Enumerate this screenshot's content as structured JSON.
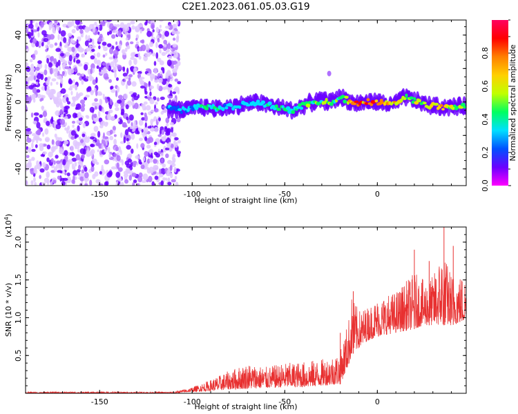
{
  "figure_title": "C2E1.2023.061.05.03.G19",
  "colors": {
    "line": "#e83030",
    "axes": "#000000",
    "scatter_low": "#6a00ff",
    "scatter_mid": "#00e0a0",
    "scatter_high": "#ff0000"
  },
  "chart_data": [
    {
      "type": "heatmap",
      "title": "",
      "xlabel": "Height of straight line (km)",
      "ylabel": "Frequency (Hz)",
      "xlim": [
        -190,
        48
      ],
      "ylim": [
        -50,
        49
      ],
      "xticks": [
        -150,
        -100,
        -50,
        0
      ],
      "yticks": [
        -40,
        -20,
        0,
        20,
        40
      ],
      "colorbar": {
        "label": "Normalized spectral amplitude",
        "range": [
          0.0,
          1.0
        ],
        "ticks": [
          0.0,
          0.2,
          0.4,
          0.6,
          0.8
        ],
        "colormap": [
          "#ff00ff",
          "#6a00ff",
          "#0050ff",
          "#00e0ff",
          "#00ff60",
          "#c0ff00",
          "#ffd000",
          "#ff8000",
          "#ff0000",
          "#ff0060"
        ]
      },
      "signal_track": {
        "x": [
          -113,
          -105,
          -95,
          -85,
          -75,
          -65,
          -55,
          -45,
          -38,
          -30,
          -25,
          -20,
          -12,
          -5,
          0,
          8,
          15,
          20,
          28,
          35,
          42,
          48
        ],
        "freq": [
          -4,
          -5,
          -3,
          -4,
          -2,
          0,
          -3,
          -5,
          -1,
          1,
          0,
          3,
          -1,
          0,
          0,
          -2,
          3,
          1,
          -2,
          -3,
          -3,
          -2
        ],
        "amplitude": [
          0.3,
          0.35,
          0.4,
          0.4,
          0.35,
          0.35,
          0.45,
          0.45,
          0.5,
          0.5,
          0.55,
          0.5,
          0.9,
          0.8,
          0.95,
          0.8,
          0.6,
          0.6,
          0.65,
          0.8,
          0.55,
          0.5
        ]
      },
      "noise_region_x": [
        -190,
        -113
      ]
    },
    {
      "type": "line",
      "title": "",
      "xlabel": "Height of straight line (km)",
      "ylabel": "SNR (10 * v/v)",
      "y_scale_label": "(x10^4)",
      "xlim": [
        -190,
        48
      ],
      "ylim": [
        0,
        2.2
      ],
      "xticks": [
        -150,
        -100,
        -50,
        0
      ],
      "yticks": [
        0.5,
        1.0,
        1.5,
        2.0
      ],
      "envelope": {
        "x": [
          -190,
          -110,
          -100,
          -90,
          -80,
          -70,
          -60,
          -50,
          -40,
          -30,
          -20,
          -15,
          -14,
          -10,
          -5,
          0,
          10,
          20,
          25,
          30,
          35,
          40,
          48
        ],
        "lo": [
          0.0,
          0.0,
          0.02,
          0.03,
          0.05,
          0.06,
          0.07,
          0.08,
          0.08,
          0.1,
          0.12,
          0.4,
          0.5,
          0.6,
          0.7,
          0.75,
          0.8,
          0.85,
          0.9,
          0.9,
          0.9,
          0.9,
          0.95
        ],
        "hi": [
          0.02,
          0.02,
          0.08,
          0.18,
          0.3,
          0.4,
          0.35,
          0.4,
          0.42,
          0.45,
          0.55,
          1.05,
          1.3,
          1.1,
          1.15,
          1.25,
          1.35,
          1.6,
          1.5,
          1.55,
          1.9,
          1.6,
          1.55
        ]
      },
      "spikes": [
        {
          "x": -20,
          "y": 0.8
        },
        {
          "x": -13,
          "y": 1.35
        },
        {
          "x": 20,
          "y": 1.9
        },
        {
          "x": 28,
          "y": 1.75
        },
        {
          "x": 36,
          "y": 2.2
        },
        {
          "x": 41,
          "y": 1.95
        }
      ]
    }
  ]
}
